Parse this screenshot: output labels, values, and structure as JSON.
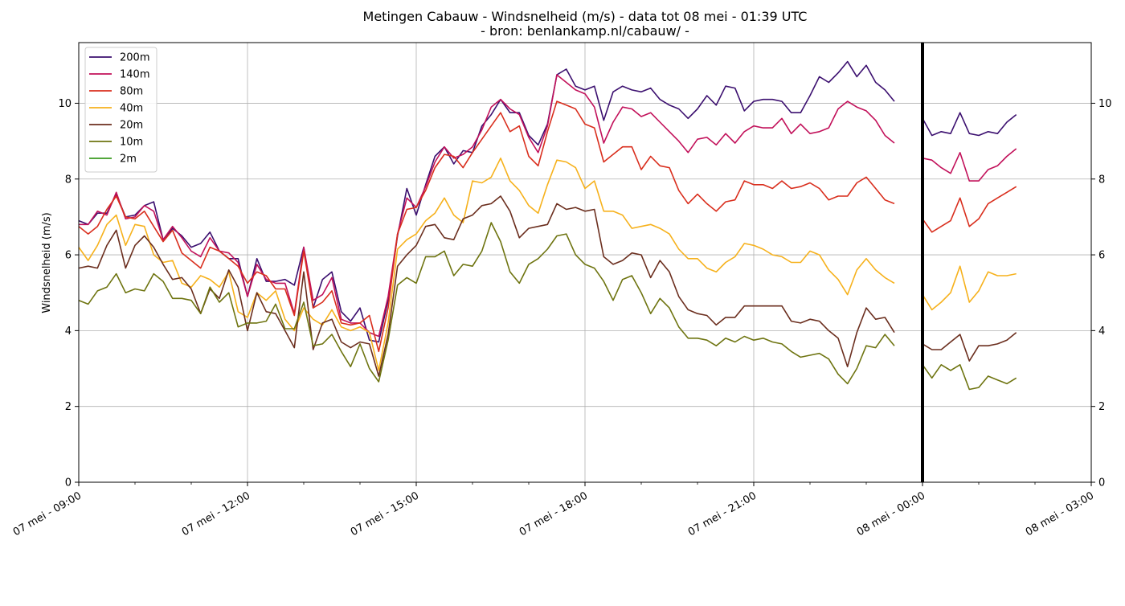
{
  "chart_data": {
    "type": "line",
    "title": "Metingen Cabauw - Windsnelheid (m/s) - data tot 08 mei - 01:39 UTC",
    "subtitle": "- bron: benlankamp.nl/cabauw/ -",
    "xlabel": "",
    "ylabel": "Windsnelheid (m/s)",
    "x_unit": "hours since 07 mei - 09:00 UTC",
    "xlim": [
      0,
      18
    ],
    "ylim": [
      0,
      11.6
    ],
    "x_ticks": [
      0,
      3,
      6,
      9,
      12,
      15,
      18
    ],
    "x_tick_labels": [
      "07 mei - 09:00",
      "07 mei - 12:00",
      "07 mei - 15:00",
      "07 mei - 18:00",
      "07 mei - 21:00",
      "08 mei - 00:00",
      "08 mei - 03:00"
    ],
    "y_ticks": [
      0,
      2,
      4,
      6,
      8,
      10
    ],
    "y_tick_labels": [
      "0",
      "2",
      "4",
      "6",
      "8",
      "10"
    ],
    "grid": true,
    "legend_position": "top-left",
    "marker_line_x": 15,
    "x_day1": [
      0.0,
      0.1667,
      0.3333,
      0.5,
      0.6667,
      0.8333,
      1.0,
      1.1667,
      1.3333,
      1.5,
      1.6667,
      1.8333,
      2.0,
      2.1667,
      2.3333,
      2.5,
      2.6667,
      2.8333,
      3.0,
      3.1667,
      3.3333,
      3.5,
      3.6667,
      3.8333,
      4.0,
      4.1667,
      4.3333,
      4.5,
      4.6667,
      4.8333,
      5.0,
      5.1667,
      5.3333,
      5.5,
      5.6667,
      5.8333,
      6.0,
      6.1667,
      6.3333,
      6.5,
      6.6667,
      6.8333,
      7.0,
      7.1667,
      7.3333,
      7.5,
      7.6667,
      7.8333,
      8.0,
      8.1667,
      8.3333,
      8.5,
      8.6667,
      8.8333,
      9.0,
      9.1667,
      9.3333,
      9.5,
      9.6667,
      9.8333,
      10.0,
      10.1667,
      10.3333,
      10.5,
      10.6667,
      10.8333,
      11.0,
      11.1667,
      11.3333,
      11.5,
      11.6667,
      11.8333,
      12.0,
      12.1667,
      12.3333,
      12.5,
      12.6667,
      12.8333,
      13.0,
      13.1667,
      13.3333,
      13.5,
      13.6667,
      13.8333,
      14.0,
      14.1667,
      14.3333,
      14.5
    ],
    "x_day2": [
      15.0,
      15.1667,
      15.3333,
      15.5,
      15.6667,
      15.8333,
      16.0,
      16.1667,
      16.3333,
      16.5,
      16.6667
    ],
    "series": [
      {
        "name": "200m",
        "color": "#3b0f6f",
        "values": [
          6.9,
          6.8,
          7.1,
          7.1,
          7.6,
          7.0,
          7.05,
          7.3,
          7.4,
          6.4,
          6.7,
          6.5,
          6.2,
          6.3,
          6.6,
          6.1,
          5.9,
          5.9,
          4.9,
          5.9,
          5.3,
          5.3,
          5.35,
          5.2,
          6.2,
          4.6,
          5.35,
          5.55,
          4.5,
          4.25,
          4.6,
          3.75,
          3.7,
          4.8,
          6.5,
          7.75,
          7.05,
          7.85,
          8.6,
          8.85,
          8.4,
          8.75,
          8.7,
          9.4,
          9.7,
          10.1,
          9.75,
          9.75,
          9.15,
          8.9,
          9.45,
          10.75,
          10.9,
          10.45,
          10.35,
          10.45,
          9.55,
          10.3,
          10.45,
          10.35,
          10.3,
          10.4,
          10.1,
          9.95,
          9.85,
          9.6,
          9.85,
          10.2,
          9.95,
          10.45,
          10.4,
          9.8,
          10.05,
          10.1,
          10.1,
          10.05,
          9.75,
          9.75,
          10.2,
          10.7,
          10.55,
          10.8,
          11.1,
          10.7,
          11.0,
          10.55,
          10.35,
          10.05
        ],
        "values_day2": [
          9.6,
          9.15,
          9.25,
          9.2,
          9.75,
          9.2,
          9.15,
          9.25,
          9.2,
          9.5,
          9.7
        ]
      },
      {
        "name": "140m",
        "color": "#c2115a",
        "values": [
          6.8,
          6.8,
          7.15,
          7.05,
          7.65,
          6.95,
          7.0,
          7.3,
          7.15,
          6.4,
          6.75,
          6.45,
          6.1,
          5.95,
          6.45,
          6.1,
          6.05,
          5.8,
          4.9,
          5.75,
          5.35,
          5.25,
          5.25,
          4.45,
          6.2,
          4.8,
          4.95,
          5.4,
          4.3,
          4.2,
          4.2,
          3.95,
          3.85,
          4.9,
          6.55,
          7.5,
          7.25,
          7.8,
          8.45,
          8.85,
          8.55,
          8.65,
          8.85,
          9.3,
          9.9,
          10.1,
          9.85,
          9.7,
          9.1,
          8.7,
          9.4,
          10.75,
          10.55,
          10.35,
          10.25,
          9.9,
          8.95,
          9.5,
          9.9,
          9.85,
          9.65,
          9.75,
          9.5,
          9.25,
          9.0,
          8.7,
          9.05,
          9.1,
          8.9,
          9.2,
          8.95,
          9.25,
          9.4,
          9.35,
          9.35,
          9.6,
          9.2,
          9.45,
          9.2,
          9.25,
          9.35,
          9.85,
          10.05,
          9.9,
          9.8,
          9.55,
          9.15,
          8.95
        ],
        "values_day2": [
          8.55,
          8.5,
          8.3,
          8.15,
          8.7,
          7.95,
          7.95,
          8.25,
          8.35,
          8.6,
          8.8
        ]
      },
      {
        "name": "80m",
        "color": "#d92e1d",
        "values": [
          6.75,
          6.55,
          6.75,
          7.2,
          7.55,
          7.0,
          6.95,
          7.15,
          6.75,
          6.35,
          6.65,
          6.05,
          5.85,
          5.65,
          6.2,
          6.1,
          5.9,
          5.7,
          5.25,
          5.55,
          5.45,
          5.1,
          5.1,
          4.4,
          6.1,
          4.6,
          4.75,
          5.05,
          4.2,
          4.15,
          4.2,
          4.4,
          3.45,
          4.6,
          6.55,
          7.2,
          7.25,
          7.7,
          8.3,
          8.65,
          8.6,
          8.3,
          8.7,
          9.05,
          9.4,
          9.75,
          9.25,
          9.4,
          8.6,
          8.35,
          9.25,
          10.05,
          9.95,
          9.85,
          9.45,
          9.35,
          8.45,
          8.65,
          8.85,
          8.85,
          8.25,
          8.6,
          8.35,
          8.3,
          7.7,
          7.35,
          7.6,
          7.35,
          7.15,
          7.4,
          7.45,
          7.95,
          7.85,
          7.85,
          7.75,
          7.95,
          7.75,
          7.8,
          7.9,
          7.75,
          7.45,
          7.55,
          7.55,
          7.9,
          8.05,
          7.75,
          7.45,
          7.35
        ],
        "values_day2": [
          6.95,
          6.6,
          6.75,
          6.9,
          7.5,
          6.75,
          6.95,
          7.35,
          7.5,
          7.65,
          7.8
        ]
      },
      {
        "name": "40m",
        "color": "#f6b11c",
        "values": [
          6.2,
          5.85,
          6.25,
          6.8,
          7.05,
          6.25,
          6.8,
          6.75,
          6.0,
          5.8,
          5.85,
          5.25,
          5.15,
          5.45,
          5.35,
          5.15,
          5.55,
          4.5,
          4.35,
          5.0,
          4.8,
          5.05,
          4.3,
          4.0,
          4.6,
          4.3,
          4.15,
          4.55,
          4.1,
          4.0,
          4.1,
          3.95,
          2.95,
          4.2,
          6.15,
          6.4,
          6.55,
          6.9,
          7.1,
          7.5,
          7.05,
          6.85,
          7.95,
          7.9,
          8.05,
          8.55,
          7.95,
          7.7,
          7.3,
          7.1,
          7.85,
          8.5,
          8.45,
          8.3,
          7.75,
          7.95,
          7.15,
          7.15,
          7.05,
          6.7,
          6.75,
          6.8,
          6.7,
          6.55,
          6.15,
          5.9,
          5.9,
          5.65,
          5.55,
          5.8,
          5.95,
          6.3,
          6.25,
          6.15,
          6.0,
          5.95,
          5.8,
          5.8,
          6.1,
          6.0,
          5.6,
          5.35,
          4.95,
          5.6,
          5.9,
          5.6,
          5.4,
          5.25
        ],
        "values_day2": [
          4.95,
          4.55,
          4.75,
          5.0,
          5.7,
          4.75,
          5.05,
          5.55,
          5.45,
          5.45,
          5.5
        ]
      },
      {
        "name": "20m",
        "color": "#6b2e1e",
        "values": [
          5.65,
          5.7,
          5.65,
          6.25,
          6.65,
          5.65,
          6.25,
          6.5,
          6.2,
          5.75,
          5.35,
          5.4,
          5.1,
          4.45,
          5.1,
          4.85,
          5.6,
          5.15,
          4.0,
          5.0,
          4.5,
          4.45,
          4.0,
          3.55,
          5.55,
          3.5,
          4.2,
          4.3,
          3.7,
          3.55,
          3.7,
          3.65,
          2.8,
          3.9,
          5.7,
          6.0,
          6.25,
          6.75,
          6.8,
          6.45,
          6.4,
          6.95,
          7.05,
          7.3,
          7.35,
          7.55,
          7.15,
          6.45,
          6.7,
          6.75,
          6.8,
          7.35,
          7.2,
          7.25,
          7.15,
          7.2,
          5.95,
          5.75,
          5.85,
          6.05,
          6.0,
          5.4,
          5.85,
          5.55,
          4.9,
          4.55,
          4.45,
          4.4,
          4.15,
          4.35,
          4.35,
          4.65,
          4.65,
          4.65,
          4.65,
          4.65,
          4.25,
          4.2,
          4.3,
          4.25,
          4.0,
          3.8,
          3.05,
          3.95,
          4.6,
          4.3,
          4.35,
          3.95
        ],
        "values_day2": [
          3.65,
          3.5,
          3.5,
          3.7,
          3.9,
          3.2,
          3.6,
          3.6,
          3.65,
          3.75,
          3.95
        ]
      },
      {
        "name": "10m",
        "color": "#6e7410",
        "values": [
          4.8,
          4.7,
          5.05,
          5.15,
          5.5,
          5.0,
          5.1,
          5.05,
          5.5,
          5.3,
          4.85,
          4.85,
          4.8,
          4.45,
          5.15,
          4.75,
          5.0,
          4.1,
          4.2,
          4.2,
          4.25,
          4.7,
          4.05,
          4.05,
          4.75,
          3.6,
          3.65,
          3.9,
          3.45,
          3.05,
          3.65,
          3.0,
          2.65,
          3.75,
          5.2,
          5.4,
          5.25,
          5.95,
          5.95,
          6.1,
          5.45,
          5.75,
          5.7,
          6.1,
          6.85,
          6.35,
          5.55,
          5.25,
          5.75,
          5.9,
          6.15,
          6.5,
          6.55,
          6.0,
          5.75,
          5.65,
          5.3,
          4.8,
          5.35,
          5.45,
          5.0,
          4.45,
          4.85,
          4.6,
          4.1,
          3.8,
          3.8,
          3.75,
          3.6,
          3.8,
          3.7,
          3.85,
          3.75,
          3.8,
          3.7,
          3.65,
          3.45,
          3.3,
          3.35,
          3.4,
          3.25,
          2.85,
          2.6,
          3.0,
          3.6,
          3.55,
          3.9,
          3.6
        ],
        "values_day2": [
          3.1,
          2.75,
          3.1,
          2.95,
          3.1,
          2.45,
          2.5,
          2.8,
          2.7,
          2.6,
          2.75
        ]
      },
      {
        "name": "2m",
        "color": "#3a9a1f",
        "values": [],
        "values_day2": []
      }
    ]
  }
}
